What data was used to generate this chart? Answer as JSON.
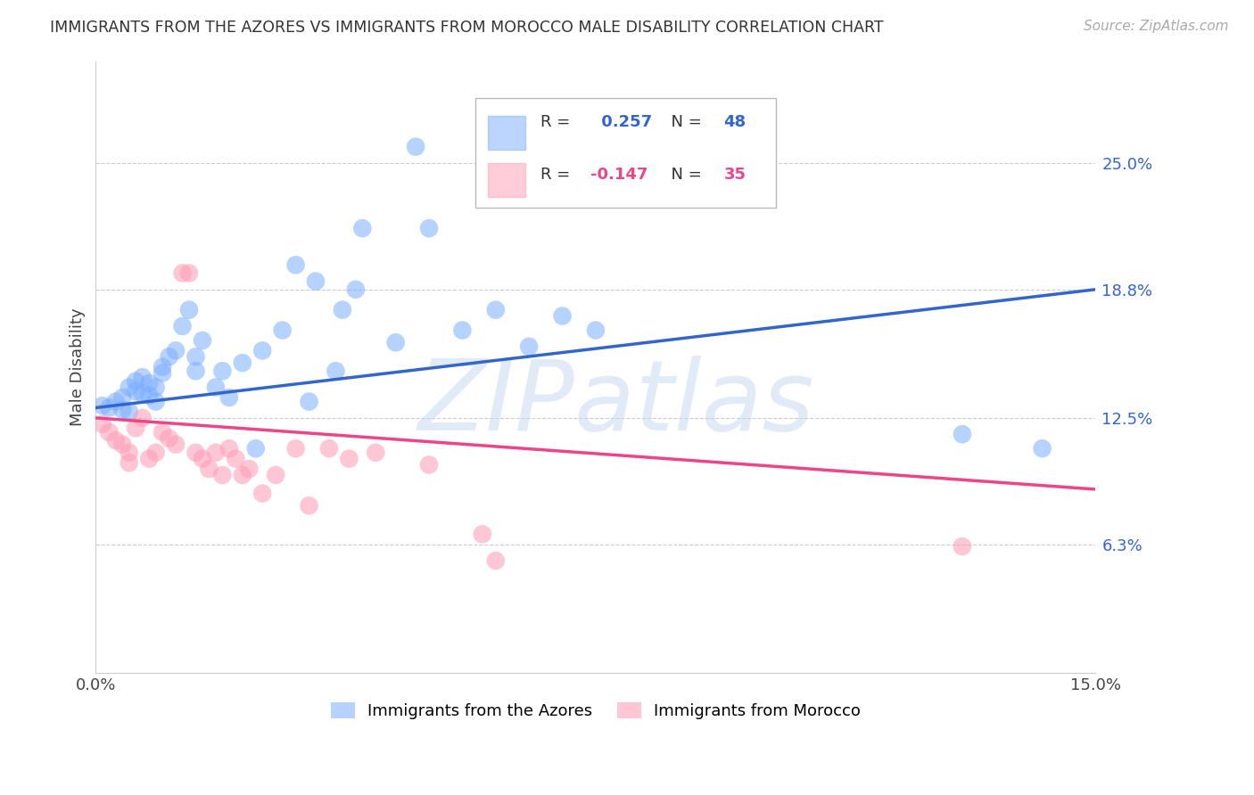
{
  "title": "IMMIGRANTS FROM THE AZORES VS IMMIGRANTS FROM MOROCCO MALE DISABILITY CORRELATION CHART",
  "source": "Source: ZipAtlas.com",
  "ylabel": "Male Disability",
  "watermark": "ZIPatlas",
  "x_min": 0.0,
  "x_max": 0.15,
  "y_min": 0.0,
  "y_max": 0.3,
  "y_tick_labels_right": [
    6.3,
    12.5,
    18.8,
    25.0
  ],
  "blue_label": "Immigrants from the Azores",
  "pink_label": "Immigrants from Morocco",
  "blue_r": "0.257",
  "blue_n": "48",
  "pink_r": "-0.147",
  "pink_n": "35",
  "blue_color": "#7aadff",
  "pink_color": "#ff9ab5",
  "blue_line_color": "#3366cc",
  "pink_line_color": "#ee4488",
  "blue_scatter": [
    [
      0.001,
      0.131
    ],
    [
      0.002,
      0.13
    ],
    [
      0.003,
      0.133
    ],
    [
      0.004,
      0.129
    ],
    [
      0.004,
      0.135
    ],
    [
      0.005,
      0.14
    ],
    [
      0.005,
      0.128
    ],
    [
      0.006,
      0.143
    ],
    [
      0.006,
      0.138
    ],
    [
      0.007,
      0.145
    ],
    [
      0.007,
      0.137
    ],
    [
      0.008,
      0.142
    ],
    [
      0.008,
      0.136
    ],
    [
      0.009,
      0.14
    ],
    [
      0.009,
      0.133
    ],
    [
      0.01,
      0.15
    ],
    [
      0.01,
      0.147
    ],
    [
      0.011,
      0.155
    ],
    [
      0.012,
      0.158
    ],
    [
      0.013,
      0.17
    ],
    [
      0.014,
      0.178
    ],
    [
      0.015,
      0.155
    ],
    [
      0.015,
      0.148
    ],
    [
      0.016,
      0.163
    ],
    [
      0.018,
      0.14
    ],
    [
      0.019,
      0.148
    ],
    [
      0.02,
      0.135
    ],
    [
      0.022,
      0.152
    ],
    [
      0.024,
      0.11
    ],
    [
      0.025,
      0.158
    ],
    [
      0.028,
      0.168
    ],
    [
      0.03,
      0.2
    ],
    [
      0.032,
      0.133
    ],
    [
      0.033,
      0.192
    ],
    [
      0.036,
      0.148
    ],
    [
      0.037,
      0.178
    ],
    [
      0.039,
      0.188
    ],
    [
      0.04,
      0.218
    ],
    [
      0.045,
      0.162
    ],
    [
      0.048,
      0.258
    ],
    [
      0.05,
      0.218
    ],
    [
      0.055,
      0.168
    ],
    [
      0.06,
      0.178
    ],
    [
      0.065,
      0.16
    ],
    [
      0.07,
      0.175
    ],
    [
      0.075,
      0.168
    ],
    [
      0.13,
      0.117
    ],
    [
      0.142,
      0.11
    ]
  ],
  "pink_scatter": [
    [
      0.001,
      0.122
    ],
    [
      0.002,
      0.118
    ],
    [
      0.003,
      0.114
    ],
    [
      0.004,
      0.112
    ],
    [
      0.005,
      0.108
    ],
    [
      0.005,
      0.103
    ],
    [
      0.006,
      0.12
    ],
    [
      0.007,
      0.125
    ],
    [
      0.008,
      0.105
    ],
    [
      0.009,
      0.108
    ],
    [
      0.01,
      0.118
    ],
    [
      0.011,
      0.115
    ],
    [
      0.012,
      0.112
    ],
    [
      0.013,
      0.196
    ],
    [
      0.014,
      0.196
    ],
    [
      0.015,
      0.108
    ],
    [
      0.016,
      0.105
    ],
    [
      0.017,
      0.1
    ],
    [
      0.018,
      0.108
    ],
    [
      0.019,
      0.097
    ],
    [
      0.02,
      0.11
    ],
    [
      0.021,
      0.105
    ],
    [
      0.022,
      0.097
    ],
    [
      0.023,
      0.1
    ],
    [
      0.025,
      0.088
    ],
    [
      0.027,
      0.097
    ],
    [
      0.03,
      0.11
    ],
    [
      0.032,
      0.082
    ],
    [
      0.035,
      0.11
    ],
    [
      0.038,
      0.105
    ],
    [
      0.042,
      0.108
    ],
    [
      0.05,
      0.102
    ],
    [
      0.058,
      0.068
    ],
    [
      0.06,
      0.055
    ],
    [
      0.13,
      0.062
    ]
  ],
  "blue_line_x0": 0.0,
  "blue_line_y0": 0.13,
  "blue_line_x1": 0.15,
  "blue_line_y1": 0.188,
  "pink_line_x0": 0.0,
  "pink_line_y0": 0.125,
  "pink_line_x1": 0.15,
  "pink_line_y1": 0.09
}
